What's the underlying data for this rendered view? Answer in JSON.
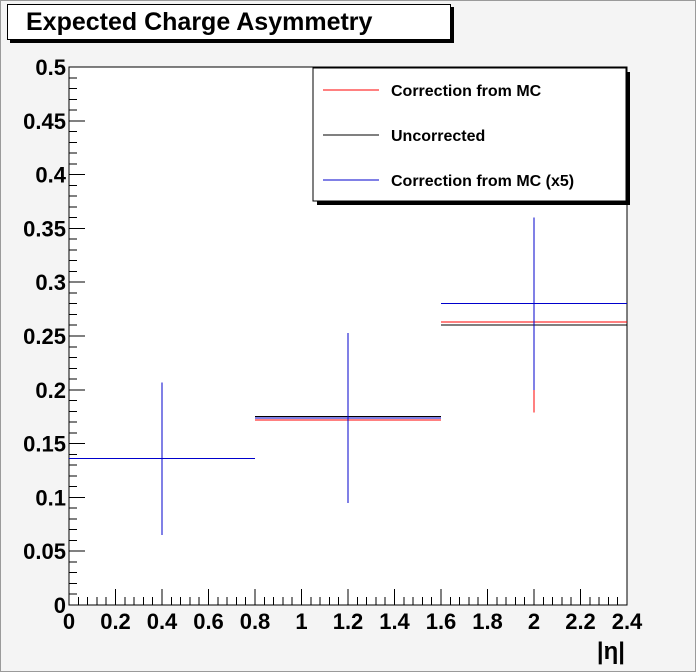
{
  "title": "Expected Charge Asymmetry",
  "chart_data": {
    "type": "scatter",
    "title": "Expected Charge Asymmetry",
    "xlabel": "|η|",
    "ylabel": "",
    "xlim": [
      0,
      2.4
    ],
    "ylim": [
      0,
      0.5
    ],
    "x_ticks": [
      "0",
      "0.2",
      "0.4",
      "0.6",
      "0.8",
      "1",
      "1.2",
      "1.4",
      "1.6",
      "1.8",
      "2",
      "2.2",
      "2.4"
    ],
    "y_ticks": [
      "0",
      "0.05",
      "0.1",
      "0.15",
      "0.2",
      "0.25",
      "0.3",
      "0.35",
      "0.4",
      "0.45",
      "0.5"
    ],
    "grid": false,
    "legend_position": "top-right",
    "series": [
      {
        "name": "Uncorrected",
        "color": "#000000",
        "points": [
          {
            "x": 1.2,
            "xlo": 0.8,
            "xhi": 1.6,
            "y": 0.175,
            "ylo": 0.175,
            "yhi": 0.175
          },
          {
            "x": 2.0,
            "xlo": 1.6,
            "xhi": 2.4,
            "y": 0.26,
            "ylo": 0.26,
            "yhi": 0.26
          }
        ]
      },
      {
        "name": "Correction from MC",
        "color": "#ff0000",
        "points": [
          {
            "x": 1.2,
            "xlo": 0.8,
            "xhi": 1.6,
            "y": 0.172,
            "ylo": 0.172,
            "yhi": 0.172
          },
          {
            "x": 2.0,
            "xlo": 1.6,
            "xhi": 2.4,
            "y": 0.263,
            "ylo": 0.179,
            "yhi": 0.263
          }
        ]
      },
      {
        "name": "Correction from MC (x5)",
        "color": "#0000cc",
        "points": [
          {
            "x": 0.4,
            "xlo": 0.0,
            "xhi": 0.8,
            "y": 0.136,
            "ylo": 0.065,
            "yhi": 0.207
          },
          {
            "x": 1.2,
            "xlo": 0.8,
            "xhi": 1.6,
            "y": 0.174,
            "ylo": 0.095,
            "yhi": 0.253
          },
          {
            "x": 2.0,
            "xlo": 1.6,
            "xhi": 2.4,
            "y": 0.28,
            "ylo": 0.2,
            "yhi": 0.36
          }
        ]
      }
    ],
    "legend": [
      {
        "label": "Correction from MC",
        "color": "#ff0000"
      },
      {
        "label": "Uncorrected",
        "color": "#000000"
      },
      {
        "label": "Correction from MC (x5)",
        "color": "#0000cc"
      }
    ]
  }
}
